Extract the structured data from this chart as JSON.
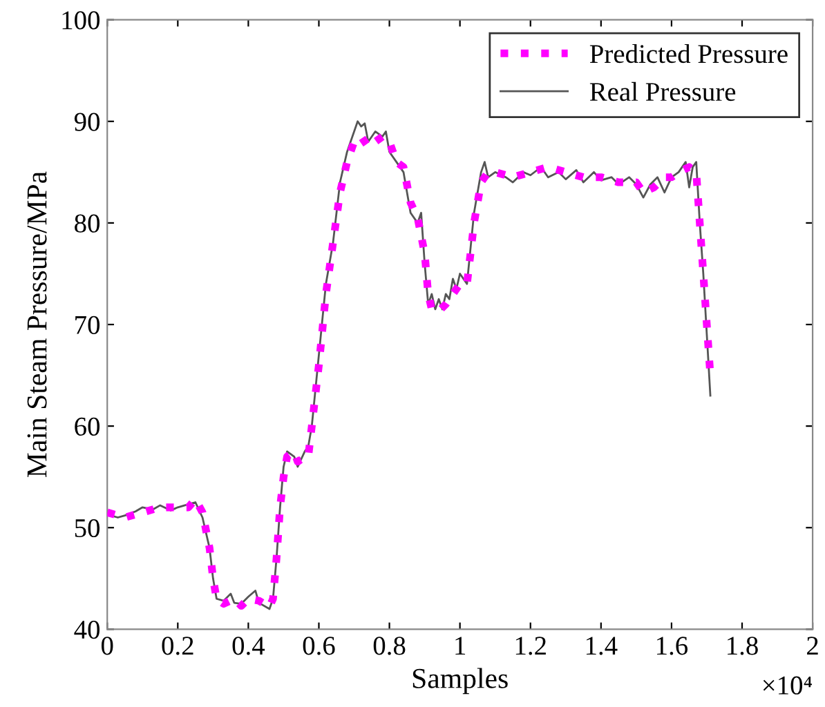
{
  "chart_data": {
    "type": "line",
    "xlabel": "Samples",
    "ylabel": "Main Steam Pressure/MPa",
    "annotations": [
      "×10⁴"
    ],
    "xlim": [
      0,
      2
    ],
    "xticks": [
      0,
      0.2,
      0.4,
      0.6,
      0.8,
      1,
      1.2,
      1.4,
      1.6,
      1.8,
      2
    ],
    "ylim": [
      40,
      100
    ],
    "yticks": [
      40,
      50,
      60,
      70,
      80,
      90,
      100
    ],
    "grid": false,
    "legend": "top right",
    "series": [
      {
        "name": "Predicted Pressure",
        "color": "#ff00ff",
        "line_style": "dotted",
        "x": [
          0,
          0.05,
          0.1,
          0.15,
          0.2,
          0.23,
          0.25,
          0.27,
          0.29,
          0.3,
          0.31,
          0.33,
          0.36,
          0.38,
          0.4,
          0.43,
          0.46,
          0.47,
          0.48,
          0.49,
          0.5,
          0.51,
          0.53,
          0.54,
          0.56,
          0.57,
          0.58,
          0.6,
          0.62,
          0.64,
          0.66,
          0.68,
          0.7,
          0.72,
          0.74,
          0.76,
          0.78,
          0.8,
          0.82,
          0.84,
          0.86,
          0.88,
          0.9,
          0.91,
          0.92,
          0.94,
          0.96,
          0.98,
          1.0,
          1.02,
          1.04,
          1.06,
          1.08,
          1.1,
          1.15,
          1.2,
          1.25,
          1.3,
          1.35,
          1.4,
          1.45,
          1.5,
          1.52,
          1.55,
          1.58,
          1.6,
          1.62,
          1.65,
          1.67,
          1.68,
          1.69,
          1.7,
          1.71
        ],
        "values": [
          51.5,
          51,
          51.5,
          52,
          52,
          52,
          52.8,
          51.5,
          48,
          45,
          43,
          42.5,
          43,
          42.3,
          43,
          42.8,
          42.2,
          43,
          47,
          52,
          55,
          57,
          57.5,
          56.5,
          57,
          57,
          60,
          66,
          73,
          78,
          83,
          86,
          88,
          88.5,
          87.5,
          88,
          88.5,
          88,
          86,
          85.5,
          82,
          80.5,
          77,
          73,
          71.5,
          71.3,
          72,
          73,
          74,
          74,
          80,
          84,
          85,
          85,
          84.5,
          85,
          85.5,
          85,
          84.5,
          84.5,
          84,
          84,
          83,
          83.5,
          84.5,
          84.5,
          85,
          85.5,
          85,
          80,
          75,
          70,
          65
        ]
      },
      {
        "name": "Real Pressure",
        "color": "#555555",
        "line_style": "solid",
        "x": [
          0,
          0.03,
          0.05,
          0.08,
          0.1,
          0.13,
          0.15,
          0.18,
          0.2,
          0.23,
          0.25,
          0.27,
          0.29,
          0.3,
          0.31,
          0.33,
          0.35,
          0.36,
          0.38,
          0.4,
          0.42,
          0.43,
          0.46,
          0.47,
          0.48,
          0.49,
          0.5,
          0.51,
          0.53,
          0.54,
          0.56,
          0.57,
          0.58,
          0.6,
          0.62,
          0.64,
          0.66,
          0.68,
          0.7,
          0.71,
          0.72,
          0.73,
          0.74,
          0.76,
          0.78,
          0.79,
          0.8,
          0.82,
          0.84,
          0.86,
          0.88,
          0.89,
          0.9,
          0.91,
          0.92,
          0.93,
          0.94,
          0.95,
          0.96,
          0.97,
          0.98,
          0.99,
          1.0,
          1.02,
          1.04,
          1.06,
          1.07,
          1.08,
          1.1,
          1.13,
          1.15,
          1.18,
          1.2,
          1.23,
          1.25,
          1.28,
          1.3,
          1.33,
          1.35,
          1.38,
          1.4,
          1.43,
          1.45,
          1.48,
          1.5,
          1.52,
          1.54,
          1.56,
          1.58,
          1.6,
          1.62,
          1.64,
          1.65,
          1.66,
          1.67,
          1.68,
          1.69,
          1.7,
          1.71
        ],
        "values": [
          51.3,
          51,
          51.2,
          51.6,
          52,
          51.8,
          52.2,
          51.7,
          52,
          52.3,
          52.5,
          51,
          48,
          45,
          43,
          42.8,
          43.5,
          42.6,
          42.5,
          43.2,
          43.8,
          42.6,
          42,
          43,
          47,
          52,
          56,
          57.5,
          57,
          56,
          57.5,
          58,
          60,
          67,
          74,
          78,
          84,
          87,
          89,
          90,
          89.5,
          89.8,
          88,
          89,
          88.5,
          89,
          87,
          86,
          85,
          81,
          80,
          81,
          76,
          72,
          73,
          71.5,
          72.5,
          71.5,
          73,
          72.5,
          74.5,
          73.5,
          75,
          74,
          81,
          85,
          86,
          84.5,
          85,
          84.5,
          84,
          85,
          84.7,
          85.5,
          84.5,
          85,
          84.3,
          85.2,
          84,
          85,
          84.2,
          84.5,
          83.8,
          84.5,
          83.8,
          82.5,
          83.8,
          84.5,
          83,
          84.5,
          85,
          86,
          83.5,
          85.5,
          86,
          80,
          75,
          69,
          63
        ]
      }
    ]
  }
}
